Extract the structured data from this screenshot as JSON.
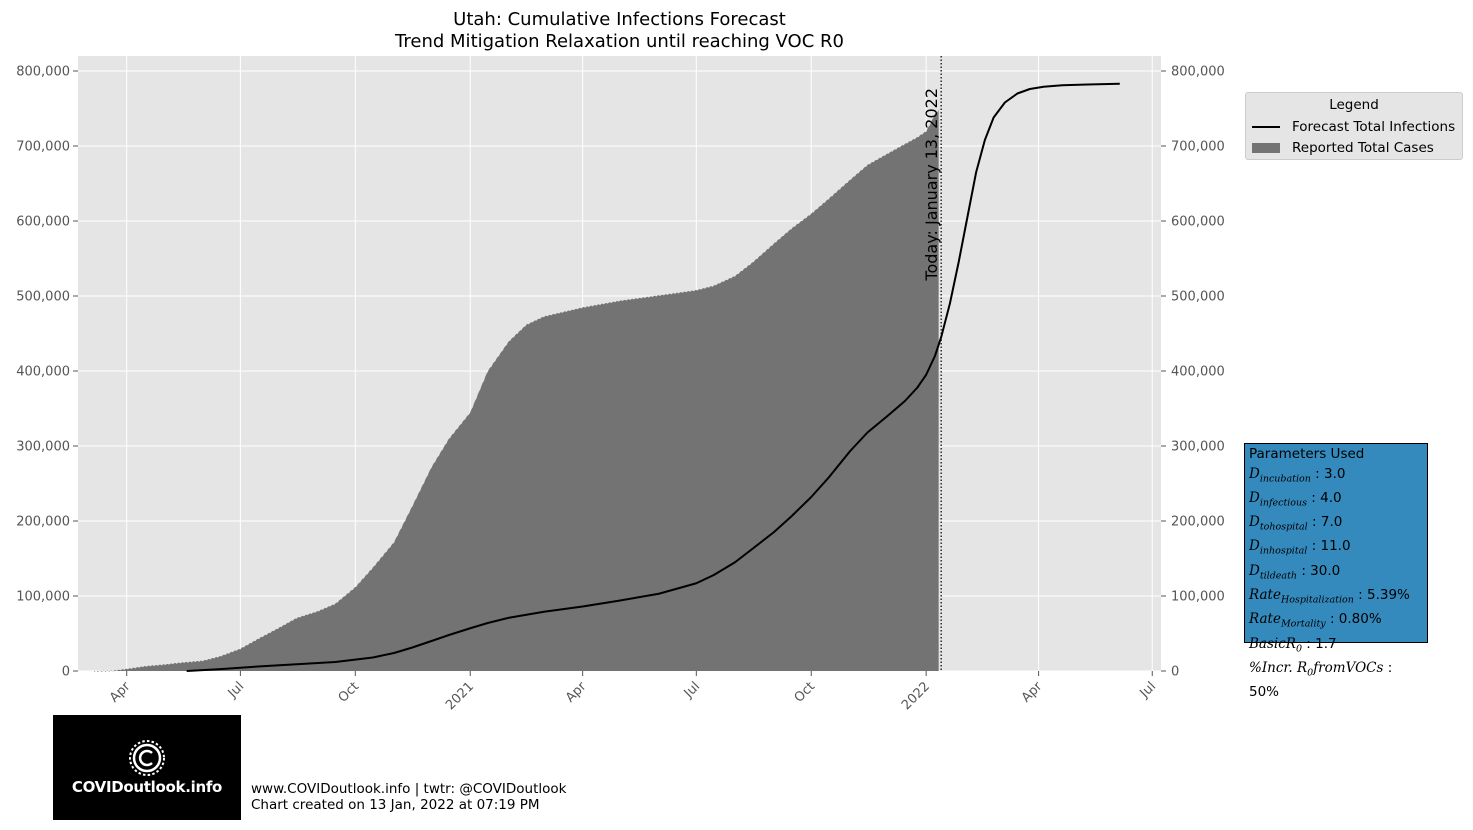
{
  "chart_data": {
    "type": "area",
    "title": "Utah: Cumulative Infections Forecast",
    "subtitle": "Trend Mitigation Relaxation until reaching VOC R0",
    "x_tick_labels": [
      "Apr",
      "Jul",
      "Oct",
      "2021",
      "Apr",
      "Jul",
      "Oct",
      "2022",
      "Apr",
      "Jul"
    ],
    "x_tick_dates": [
      "2020-04-01",
      "2020-07-01",
      "2020-10-01",
      "2021-01-01",
      "2021-04-01",
      "2021-07-01",
      "2021-10-01",
      "2022-01-01",
      "2022-04-01",
      "2022-07-01"
    ],
    "xlim": [
      "2020-02-22",
      "2022-07-08"
    ],
    "y_tick_labels": [
      "0",
      "100,000",
      "200,000",
      "300,000",
      "400,000",
      "500,000",
      "600,000",
      "700,000",
      "800,000"
    ],
    "y_tick_values": [
      0,
      100000,
      200000,
      300000,
      400000,
      500000,
      600000,
      700000,
      800000
    ],
    "ylim": [
      0,
      820000
    ],
    "grid": true,
    "legend_position": "right",
    "today_label": "Today: January 13, 2022",
    "today_date": "2022-01-13",
    "series": [
      {
        "name": "Forecast Total Infections",
        "kind": "line",
        "color": "#000000",
        "points": [
          [
            "2020-05-19",
            0
          ],
          [
            "2020-06-15",
            2500
          ],
          [
            "2020-07-15",
            6000
          ],
          [
            "2020-08-15",
            9000
          ],
          [
            "2020-09-15",
            12000
          ],
          [
            "2020-10-15",
            18000
          ],
          [
            "2020-11-01",
            24000
          ],
          [
            "2020-11-15",
            31000
          ],
          [
            "2020-12-01",
            40000
          ],
          [
            "2020-12-15",
            48000
          ],
          [
            "2021-01-01",
            57000
          ],
          [
            "2021-01-15",
            64000
          ],
          [
            "2021-02-01",
            71000
          ],
          [
            "2021-02-15",
            75000
          ],
          [
            "2021-03-01",
            79000
          ],
          [
            "2021-04-01",
            86000
          ],
          [
            "2021-05-01",
            94000
          ],
          [
            "2021-06-01",
            103000
          ],
          [
            "2021-07-01",
            117000
          ],
          [
            "2021-07-15",
            128000
          ],
          [
            "2021-08-01",
            145000
          ],
          [
            "2021-08-15",
            163000
          ],
          [
            "2021-09-01",
            185000
          ],
          [
            "2021-09-15",
            206000
          ],
          [
            "2021-10-01",
            232000
          ],
          [
            "2021-10-15",
            258000
          ],
          [
            "2021-11-01",
            293000
          ],
          [
            "2021-11-15",
            318000
          ],
          [
            "2021-12-01",
            340000
          ],
          [
            "2021-12-15",
            360000
          ],
          [
            "2021-12-25",
            378000
          ],
          [
            "2022-01-01",
            395000
          ],
          [
            "2022-01-08",
            420000
          ],
          [
            "2022-01-13",
            445000
          ],
          [
            "2022-01-20",
            490000
          ],
          [
            "2022-01-27",
            545000
          ],
          [
            "2022-02-03",
            605000
          ],
          [
            "2022-02-10",
            665000
          ],
          [
            "2022-02-17",
            708000
          ],
          [
            "2022-02-24",
            738000
          ],
          [
            "2022-03-05",
            758000
          ],
          [
            "2022-03-15",
            770000
          ],
          [
            "2022-03-25",
            776000
          ],
          [
            "2022-04-05",
            779000
          ],
          [
            "2022-04-20",
            781000
          ],
          [
            "2022-05-10",
            782000
          ],
          [
            "2022-06-05",
            783000
          ]
        ]
      },
      {
        "name": "Reported Total Cases",
        "kind": "bars",
        "color": "#737373",
        "points": [
          [
            "2020-03-06",
            0
          ],
          [
            "2020-03-20",
            500
          ],
          [
            "2020-04-01",
            3000
          ],
          [
            "2020-04-15",
            6500
          ],
          [
            "2020-05-01",
            9000
          ],
          [
            "2020-05-15",
            11500
          ],
          [
            "2020-06-01",
            14000
          ],
          [
            "2020-06-15",
            20000
          ],
          [
            "2020-07-01",
            30000
          ],
          [
            "2020-07-15",
            43000
          ],
          [
            "2020-08-01",
            58000
          ],
          [
            "2020-08-15",
            71000
          ],
          [
            "2020-09-01",
            80000
          ],
          [
            "2020-09-15",
            90000
          ],
          [
            "2020-10-01",
            112000
          ],
          [
            "2020-10-15",
            138000
          ],
          [
            "2020-11-01",
            172000
          ],
          [
            "2020-11-15",
            218000
          ],
          [
            "2020-12-01",
            272000
          ],
          [
            "2020-12-15",
            310000
          ],
          [
            "2021-01-01",
            345000
          ],
          [
            "2021-01-15",
            400000
          ],
          [
            "2021-02-01",
            440000
          ],
          [
            "2021-02-15",
            462000
          ],
          [
            "2021-03-01",
            473000
          ],
          [
            "2021-04-01",
            485000
          ],
          [
            "2021-05-01",
            494000
          ],
          [
            "2021-06-01",
            501000
          ],
          [
            "2021-07-01",
            508000
          ],
          [
            "2021-07-15",
            514000
          ],
          [
            "2021-08-01",
            527000
          ],
          [
            "2021-08-15",
            545000
          ],
          [
            "2021-09-01",
            570000
          ],
          [
            "2021-09-15",
            590000
          ],
          [
            "2021-10-01",
            610000
          ],
          [
            "2021-10-15",
            630000
          ],
          [
            "2021-11-01",
            655000
          ],
          [
            "2021-11-15",
            675000
          ],
          [
            "2021-12-01",
            690000
          ],
          [
            "2021-12-15",
            703000
          ],
          [
            "2021-12-25",
            712000
          ],
          [
            "2022-01-01",
            720000
          ],
          [
            "2022-01-05",
            732000
          ],
          [
            "2022-01-08",
            743000
          ],
          [
            "2022-01-11",
            748000
          ]
        ]
      }
    ]
  },
  "legend": {
    "title": "Legend",
    "items": [
      {
        "label": "Forecast Total Infections"
      },
      {
        "label": "Reported Total Cases"
      }
    ]
  },
  "params": {
    "title": "Parameters Used",
    "rows": [
      {
        "sym": "D",
        "sub": "incubation",
        "value": " : 3.0"
      },
      {
        "sym": "D",
        "sub": "infectious",
        "value": " : 4.0"
      },
      {
        "sym": "D",
        "sub": "tohospital",
        "value": " : 7.0"
      },
      {
        "sym": "D",
        "sub": "inhospital",
        "value": " : 11.0"
      },
      {
        "sym": "D",
        "sub": "tildeath",
        "value": " : 30.0"
      },
      {
        "sym": "Rate",
        "sub": "Hospitalization",
        "value": " : 5.39%"
      },
      {
        "sym": "Rate",
        "sub": "Mortality",
        "value": " : 0.80%"
      },
      {
        "sym": "BasicR",
        "sub": "0",
        "value": " : 1.7"
      },
      {
        "sym": "%Incr. R",
        "sub": "0",
        "symTail": "fromVOCs",
        "value": " : 50%"
      }
    ]
  },
  "logo": {
    "text": "COVIDoutlook.info"
  },
  "footer": {
    "line1": "www.COVIDoutlook.info | twtr: @COVIDoutlook",
    "line2": "Chart created on 13 Jan, 2022 at 07:19 PM"
  }
}
